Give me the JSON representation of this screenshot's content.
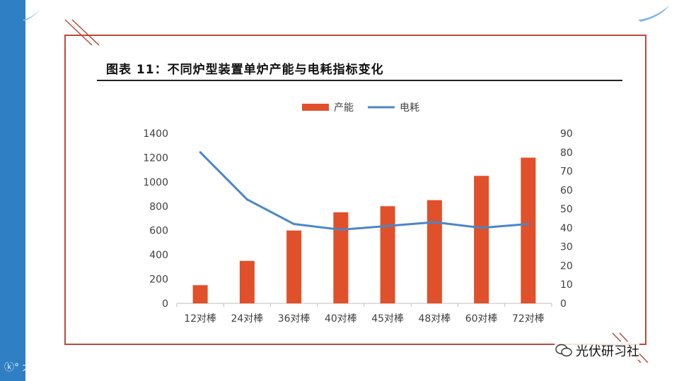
{
  "page": {
    "accent_color": "#2f7fc4",
    "frame_color": "#b84a3b"
  },
  "title": "图表 11：不同炉型装置单炉产能与电耗指标变化",
  "watermark_left": "大数跨境",
  "watermark_right": "光伏研习社",
  "chart_data": {
    "type": "bar",
    "categories": [
      "12对棒",
      "24对棒",
      "36对棒",
      "40对棒",
      "45对棒",
      "48对棒",
      "60对棒",
      "72对棒"
    ],
    "series": [
      {
        "name": "产能",
        "type": "bar",
        "axis": "left",
        "color": "#e0502a",
        "values": [
          150,
          350,
          600,
          750,
          800,
          850,
          1050,
          1200
        ]
      },
      {
        "name": "电耗",
        "type": "line",
        "axis": "right",
        "color": "#4a86c8",
        "values": [
          80,
          55,
          42,
          39,
          41,
          43,
          40,
          42
        ]
      }
    ],
    "y_left": {
      "min": 0,
      "max": 1400,
      "ticks": [
        "0",
        "200",
        "400",
        "600",
        "800",
        "1000",
        "1200",
        "1400"
      ]
    },
    "y_right": {
      "min": 0,
      "max": 90,
      "ticks": [
        "0",
        "10",
        "20",
        "30",
        "40",
        "50",
        "60",
        "70",
        "80",
        "90"
      ]
    },
    "legend_position": "top-center",
    "grid": false
  }
}
